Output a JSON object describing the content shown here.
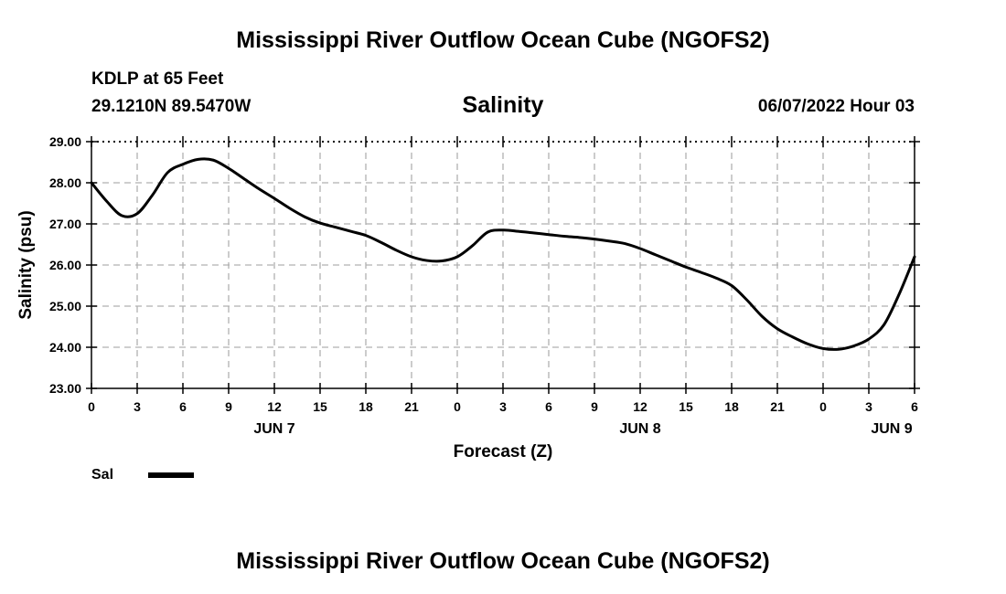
{
  "header": {
    "title": "Mississippi River Outflow Ocean Cube (NGOFS2)",
    "station_line": "KDLP at 65 Feet",
    "coords": "29.1210N  89.5470W",
    "variable": "Salinity",
    "datetime": "06/07/2022 Hour 03"
  },
  "footer": {
    "title": "Mississippi River Outflow Ocean Cube (NGOFS2)"
  },
  "legend": {
    "label": "Sal"
  },
  "colors": {
    "line": "#000000",
    "grid": "#b0b0b0",
    "border": "#000000"
  },
  "chart_data": {
    "type": "line",
    "title": "Salinity",
    "xlabel": "Forecast (Z)",
    "ylabel": "Salinity (psu)",
    "ylim": [
      23.0,
      29.0
    ],
    "xlim": [
      0,
      54
    ],
    "yticks": [
      "23.00",
      "24.00",
      "25.00",
      "26.00",
      "27.00",
      "28.00",
      "29.00"
    ],
    "xtick_labels": [
      "0",
      "3",
      "6",
      "9",
      "12",
      "15",
      "18",
      "21",
      "0",
      "3",
      "6",
      "9",
      "12",
      "15",
      "18",
      "21",
      "0",
      "3",
      "6"
    ],
    "day_labels": [
      {
        "label": "JUN 7",
        "hour": 12
      },
      {
        "label": "JUN 8",
        "hour": 36
      },
      {
        "label": "JUN 9",
        "hour": 52.5
      }
    ],
    "grid": true,
    "series": [
      {
        "name": "Sal",
        "x": [
          0,
          1,
          2,
          3,
          4,
          5,
          6,
          7,
          8,
          9,
          10,
          11,
          12,
          13,
          14,
          15,
          16,
          17,
          18,
          19,
          20,
          21,
          22,
          23,
          24,
          25,
          26,
          27,
          28,
          29,
          30,
          31,
          32,
          33,
          34,
          35,
          36,
          37,
          38,
          39,
          40,
          41,
          42,
          43,
          44,
          45,
          46,
          47,
          48,
          49,
          50,
          51,
          52,
          53,
          54
        ],
        "values": [
          28.0,
          27.55,
          27.2,
          27.25,
          27.7,
          28.25,
          28.45,
          28.57,
          28.55,
          28.35,
          28.1,
          27.85,
          27.62,
          27.38,
          27.17,
          27.02,
          26.92,
          26.82,
          26.72,
          26.55,
          26.36,
          26.2,
          26.11,
          26.1,
          26.2,
          26.47,
          26.8,
          26.85,
          26.82,
          26.78,
          26.74,
          26.7,
          26.67,
          26.63,
          26.58,
          26.52,
          26.4,
          26.25,
          26.1,
          25.95,
          25.82,
          25.68,
          25.5,
          25.15,
          24.75,
          24.45,
          24.25,
          24.08,
          23.97,
          23.95,
          24.03,
          24.2,
          24.55,
          25.3,
          26.2
        ]
      }
    ]
  }
}
